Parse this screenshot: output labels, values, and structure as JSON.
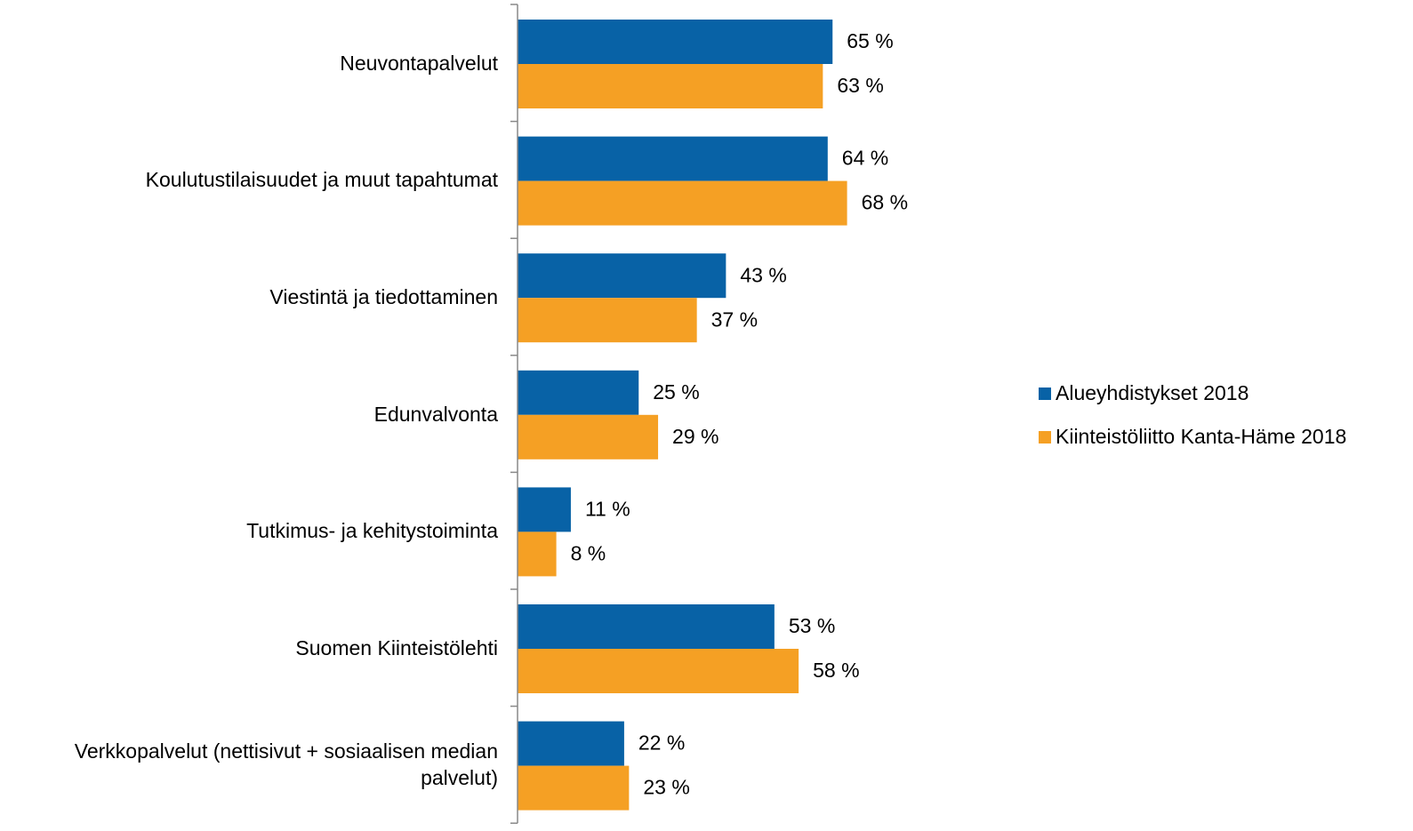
{
  "chart_data": {
    "type": "bar",
    "orientation": "horizontal",
    "categories": [
      "Neuvontapalvelut",
      "Koulutustilaisuudet ja muut tapahtumat",
      "Viestintä ja tiedottaminen",
      "Edunvalvonta",
      "Tutkimus- ja kehitystoiminta",
      "Suomen Kiinteistölehti",
      "Verkkopalvelut (nettisivut + sosiaalisen median palvelut)"
    ],
    "series": [
      {
        "name": "Alueyhdistykset 2018",
        "color": "#0862a6",
        "values": [
          65,
          64,
          43,
          25,
          11,
          53,
          22
        ],
        "value_labels": [
          "65 %",
          "64 %",
          "43 %",
          "25 %",
          "11 %",
          "53 %",
          "22 %"
        ]
      },
      {
        "name": "Kiinteistöliitto Kanta-Häme 2018",
        "color": "#f5a024",
        "values": [
          63,
          68,
          37,
          29,
          8,
          58,
          23
        ],
        "value_labels": [
          "63 %",
          "68 %",
          "37 %",
          "29 %",
          "8 %",
          "58 %",
          "23 %"
        ]
      }
    ],
    "legend": "right"
  }
}
